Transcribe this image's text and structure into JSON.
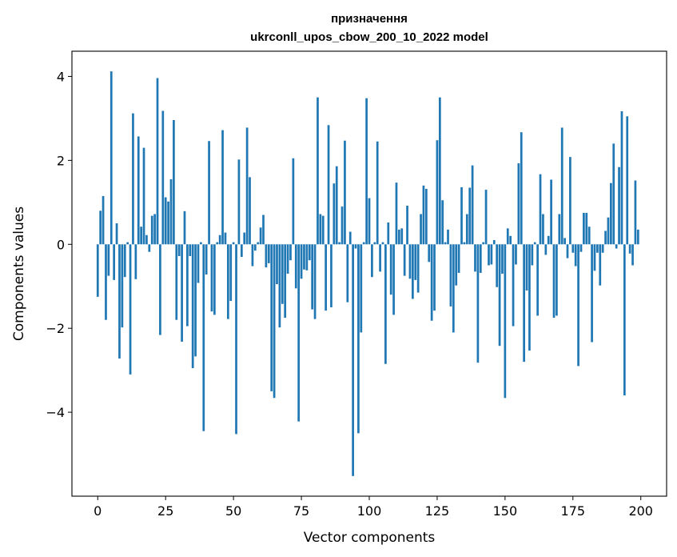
{
  "chart_data": {
    "type": "bar",
    "title": [
      "призначення",
      "ukrconll_upos_cbow_200_10_2022 model"
    ],
    "xlabel": "Vector components",
    "ylabel": "Components values",
    "xlim": [
      -9.5,
      209.5
    ],
    "ylim": [
      -6.0,
      4.6
    ],
    "xticks": [
      0,
      25,
      50,
      75,
      100,
      125,
      150,
      175,
      200
    ],
    "xtick_labels": [
      "0",
      "25",
      "50",
      "75",
      "100",
      "125",
      "150",
      "175",
      "200"
    ],
    "yticks": [
      -4,
      -2,
      0,
      2,
      4
    ],
    "ytick_labels": [
      "−4",
      "−2",
      "0",
      "2",
      "4"
    ],
    "grid": false,
    "bar_color": "#1f77b4",
    "values": [
      -1.25,
      0.8,
      1.15,
      -1.8,
      -0.75,
      4.12,
      -0.85,
      0.5,
      -2.72,
      -1.98,
      -0.78,
      0.05,
      -3.1,
      3.12,
      -0.83,
      2.57,
      0.42,
      2.3,
      0.22,
      -0.18,
      0.68,
      0.72,
      3.96,
      -2.16,
      3.18,
      1.12,
      1.02,
      1.55,
      2.96,
      -1.8,
      -0.28,
      -2.32,
      0.79,
      -1.95,
      -0.28,
      -2.95,
      -2.67,
      -0.92,
      0.05,
      -4.45,
      -0.72,
      2.46,
      -1.6,
      -1.68,
      0.05,
      0.22,
      2.72,
      0.28,
      -1.78,
      -1.35,
      0.05,
      -4.52,
      2.02,
      -0.3,
      0.28,
      2.78,
      1.6,
      -0.52,
      -0.15,
      0.05,
      0.4,
      0.7,
      -0.55,
      -0.45,
      -3.5,
      -3.66,
      -0.95,
      -1.98,
      -1.42,
      -1.75,
      -0.7,
      -0.38,
      2.05,
      -1.05,
      -4.22,
      -0.82,
      -0.6,
      -0.62,
      -0.38,
      -1.55,
      -1.78,
      3.5,
      0.72,
      0.68,
      -1.58,
      2.84,
      -1.5,
      1.45,
      1.86,
      0.05,
      0.9,
      2.47,
      -1.38,
      0.3,
      -5.52,
      -0.1,
      -4.5,
      -2.1,
      0.05,
      3.48,
      1.1,
      -0.78,
      0.05,
      2.45,
      -0.65,
      0.05,
      -2.85,
      0.52,
      -1.2,
      -1.68,
      1.47,
      0.35,
      0.38,
      -0.75,
      0.92,
      -0.82,
      -1.3,
      -0.85,
      -1.15,
      0.72,
      1.4,
      1.32,
      -0.42,
      -1.82,
      -1.58,
      2.48,
      3.5,
      1.05,
      0.05,
      0.35,
      -1.48,
      -2.1,
      -0.98,
      -0.68,
      1.36,
      0.05,
      0.72,
      1.35,
      1.88,
      -0.65,
      -2.82,
      -0.68,
      0.05,
      1.3,
      -0.5,
      -0.48,
      0.1,
      -1.02,
      -2.42,
      -0.7,
      -3.66,
      0.38,
      0.2,
      -1.95,
      -0.48,
      1.93,
      2.67,
      -2.8,
      -1.1,
      -2.53,
      -0.5,
      0.05,
      -1.7,
      1.67,
      0.72,
      -0.25,
      0.2,
      1.54,
      -1.75,
      -1.7,
      0.72,
      2.78,
      0.15,
      -0.33,
      2.08,
      -0.2,
      -0.52,
      -2.9,
      -0.18,
      0.75,
      0.75,
      0.42,
      -2.33,
      -0.63,
      -0.2,
      -0.98,
      -0.2,
      0.32,
      0.64,
      1.46,
      2.4,
      -0.1,
      1.84,
      3.17,
      -3.6,
      3.05,
      -0.22,
      -0.5,
      1.52,
      0.35
    ]
  }
}
